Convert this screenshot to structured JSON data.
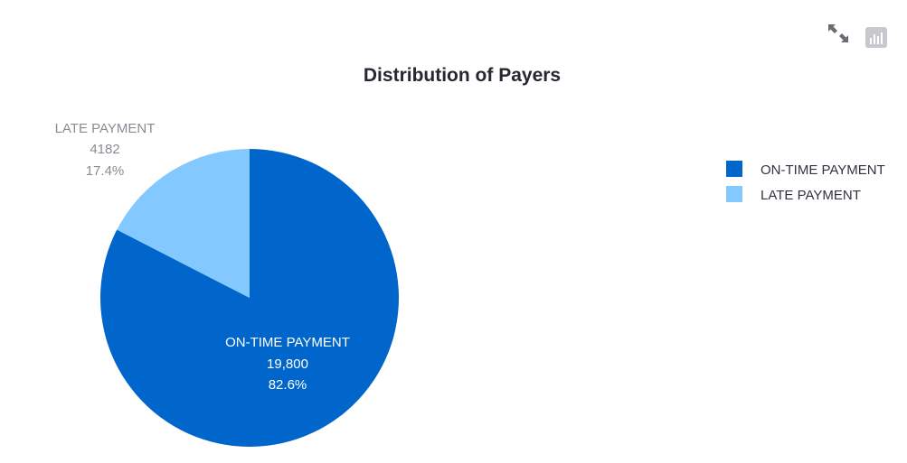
{
  "toolbar": {
    "expand_icon": "expand-arrows-icon",
    "chart_icon": "chart-settings-icon"
  },
  "chart_data": {
    "type": "pie",
    "title": "Distribution of Payers",
    "slices": [
      {
        "label": "ON-TIME PAYMENT",
        "value": 19800,
        "value_text": "19,800",
        "percent_text": "82.6%",
        "color": "#0066cc",
        "label_position": "inside"
      },
      {
        "label": "LATE PAYMENT",
        "value": 4182,
        "value_text": "4182",
        "percent_text": "17.4%",
        "color": "#83c9ff",
        "label_position": "outside"
      }
    ],
    "legend": {
      "position": "top-right",
      "entries": [
        "ON-TIME PAYMENT",
        "LATE PAYMENT"
      ]
    },
    "start_angle_deg": 0,
    "direction": "clockwise"
  }
}
